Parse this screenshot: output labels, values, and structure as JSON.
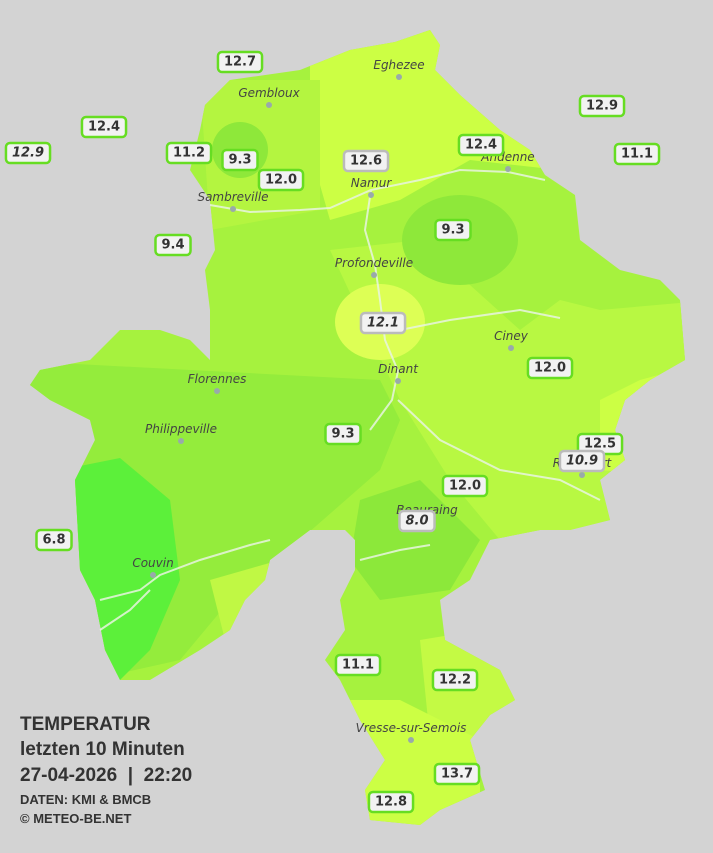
{
  "legend": {
    "heading": "TEMPERATUR",
    "subtitle": "letzten 10 Minuten",
    "timestamp": "27-04-2026  |  22:20",
    "source": "DATEN: KMI & BMCB",
    "copyright": "© METEO-BE.NET"
  },
  "cities": [
    "Eghezee",
    "Gembloux",
    "Andenne",
    "Namur",
    "Sambreville",
    "Profondeville",
    "Ciney",
    "Dinant",
    "Florennes",
    "Philippeville",
    "Rochefort",
    "Beauraing",
    "Couvin",
    "Vresse-sur-Semois"
  ],
  "stations": [
    "12.7",
    "12.4",
    "12.9",
    "11.2",
    "9.4",
    "6.8",
    "12.9",
    "11.1",
    "9.3",
    "12.0",
    "12.6",
    "12.4",
    "9.3",
    "12.1",
    "12.0",
    "12.5",
    "10.9",
    "9.3",
    "12.0",
    "8.0",
    "11.1",
    "12.2",
    "13.7",
    "12.8"
  ]
}
